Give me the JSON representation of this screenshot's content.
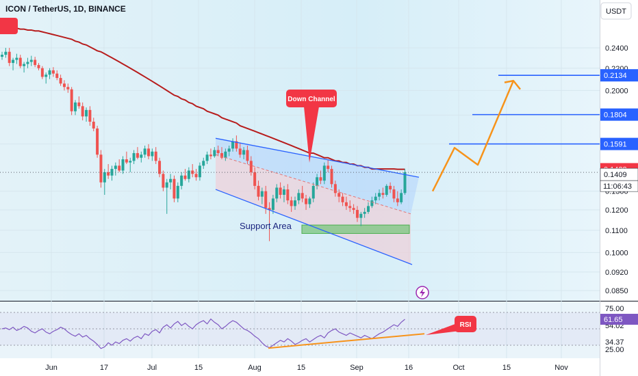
{
  "header": {
    "title": "ICON / TetherUS, 1D, BINANCE",
    "currency": "USDT"
  },
  "colors": {
    "background": "#e3f2f8",
    "bull": "#26a69a",
    "bear": "#ef5350",
    "ma": "#b71c1c",
    "channel": "#2962ff",
    "projection": "#f7931a",
    "support": "#4caf50",
    "label_bg": "#f23645",
    "rsi": "#7e57c2"
  },
  "chart_data": [
    {
      "type": "candlestick",
      "title": "ICON / TetherUS, 1D, BINANCE",
      "x_ticks": [
        "Jun",
        "17",
        "Jul",
        "15",
        "Aug",
        "15",
        "Sep",
        "16",
        "Oct",
        "15",
        "Nov"
      ],
      "y_ticks": [
        "0.2400",
        "0.2200",
        "0.2000",
        "0.1800",
        "0.1591",
        "0.1300",
        "0.1200",
        "0.1100",
        "0.1000",
        "0.0920",
        "0.0850"
      ],
      "ylim": [
        0.082,
        0.27
      ],
      "y_scale": "log",
      "candles": [
        [
          0.231,
          0.236,
          0.228,
          0.233
        ],
        [
          0.233,
          0.24,
          0.23,
          0.236
        ],
        [
          0.236,
          0.24,
          0.222,
          0.225
        ],
        [
          0.225,
          0.23,
          0.218,
          0.228
        ],
        [
          0.228,
          0.234,
          0.224,
          0.23
        ],
        [
          0.23,
          0.233,
          0.22,
          0.222
        ],
        [
          0.222,
          0.226,
          0.216,
          0.224
        ],
        [
          0.224,
          0.23,
          0.22,
          0.226
        ],
        [
          0.226,
          0.232,
          0.222,
          0.228
        ],
        [
          0.228,
          0.231,
          0.221,
          0.223
        ],
        [
          0.223,
          0.225,
          0.218,
          0.22
        ],
        [
          0.22,
          0.222,
          0.21,
          0.212
        ],
        [
          0.212,
          0.216,
          0.206,
          0.214
        ],
        [
          0.214,
          0.22,
          0.21,
          0.218
        ],
        [
          0.218,
          0.221,
          0.212,
          0.215
        ],
        [
          0.215,
          0.218,
          0.209,
          0.211
        ],
        [
          0.211,
          0.214,
          0.204,
          0.206
        ],
        [
          0.206,
          0.209,
          0.2,
          0.203
        ],
        [
          0.203,
          0.206,
          0.198,
          0.201
        ],
        [
          0.201,
          0.203,
          0.18,
          0.183
        ],
        [
          0.183,
          0.192,
          0.18,
          0.19
        ],
        [
          0.19,
          0.195,
          0.185,
          0.187
        ],
        [
          0.187,
          0.19,
          0.176,
          0.179
        ],
        [
          0.179,
          0.186,
          0.175,
          0.184
        ],
        [
          0.184,
          0.187,
          0.172,
          0.175
        ],
        [
          0.175,
          0.178,
          0.168,
          0.17
        ],
        [
          0.17,
          0.172,
          0.15,
          0.152
        ],
        [
          0.152,
          0.155,
          0.132,
          0.135
        ],
        [
          0.135,
          0.143,
          0.128,
          0.141
        ],
        [
          0.141,
          0.146,
          0.137,
          0.139
        ],
        [
          0.139,
          0.145,
          0.136,
          0.143
        ],
        [
          0.143,
          0.147,
          0.139,
          0.145
        ],
        [
          0.145,
          0.149,
          0.141,
          0.142
        ],
        [
          0.142,
          0.151,
          0.14,
          0.149
        ],
        [
          0.149,
          0.154,
          0.146,
          0.147
        ],
        [
          0.147,
          0.15,
          0.141,
          0.148
        ],
        [
          0.148,
          0.155,
          0.146,
          0.153
        ],
        [
          0.153,
          0.157,
          0.149,
          0.15
        ],
        [
          0.15,
          0.154,
          0.147,
          0.152
        ],
        [
          0.152,
          0.158,
          0.15,
          0.156
        ],
        [
          0.156,
          0.159,
          0.149,
          0.151
        ],
        [
          0.151,
          0.156,
          0.148,
          0.154
        ],
        [
          0.154,
          0.157,
          0.146,
          0.148
        ],
        [
          0.148,
          0.15,
          0.138,
          0.14
        ],
        [
          0.14,
          0.142,
          0.13,
          0.132
        ],
        [
          0.132,
          0.137,
          0.118,
          0.135
        ],
        [
          0.135,
          0.14,
          0.131,
          0.137
        ],
        [
          0.137,
          0.139,
          0.124,
          0.126
        ],
        [
          0.126,
          0.135,
          0.124,
          0.133
        ],
        [
          0.133,
          0.141,
          0.131,
          0.139
        ],
        [
          0.139,
          0.143,
          0.136,
          0.137
        ],
        [
          0.137,
          0.144,
          0.135,
          0.142
        ],
        [
          0.142,
          0.146,
          0.138,
          0.14
        ],
        [
          0.14,
          0.143,
          0.136,
          0.138
        ],
        [
          0.138,
          0.147,
          0.136,
          0.145
        ],
        [
          0.145,
          0.15,
          0.143,
          0.148
        ],
        [
          0.148,
          0.154,
          0.146,
          0.152
        ],
        [
          0.152,
          0.156,
          0.149,
          0.151
        ],
        [
          0.151,
          0.157,
          0.15,
          0.155
        ],
        [
          0.155,
          0.158,
          0.151,
          0.153
        ],
        [
          0.153,
          0.157,
          0.149,
          0.15
        ],
        [
          0.15,
          0.156,
          0.148,
          0.154
        ],
        [
          0.154,
          0.158,
          0.151,
          0.156
        ],
        [
          0.156,
          0.163,
          0.154,
          0.161
        ],
        [
          0.161,
          0.165,
          0.154,
          0.156
        ],
        [
          0.156,
          0.16,
          0.15,
          0.152
        ],
        [
          0.152,
          0.157,
          0.149,
          0.155
        ],
        [
          0.155,
          0.158,
          0.146,
          0.148
        ],
        [
          0.148,
          0.151,
          0.139,
          0.141
        ],
        [
          0.141,
          0.144,
          0.131,
          0.133
        ],
        [
          0.133,
          0.136,
          0.125,
          0.127
        ],
        [
          0.127,
          0.132,
          0.123,
          0.13
        ],
        [
          0.13,
          0.133,
          0.118,
          0.121
        ],
        [
          0.121,
          0.124,
          0.105,
          0.12
        ],
        [
          0.12,
          0.128,
          0.118,
          0.126
        ],
        [
          0.126,
          0.134,
          0.124,
          0.132
        ],
        [
          0.132,
          0.135,
          0.126,
          0.128
        ],
        [
          0.128,
          0.133,
          0.124,
          0.131
        ],
        [
          0.131,
          0.134,
          0.123,
          0.125
        ],
        [
          0.125,
          0.127,
          0.119,
          0.122
        ],
        [
          0.122,
          0.127,
          0.12,
          0.125
        ],
        [
          0.125,
          0.131,
          0.123,
          0.129
        ],
        [
          0.129,
          0.133,
          0.124,
          0.126
        ],
        [
          0.126,
          0.128,
          0.12,
          0.123
        ],
        [
          0.123,
          0.127,
          0.121,
          0.126
        ],
        [
          0.126,
          0.135,
          0.124,
          0.133
        ],
        [
          0.133,
          0.14,
          0.131,
          0.138
        ],
        [
          0.138,
          0.142,
          0.134,
          0.136
        ],
        [
          0.136,
          0.147,
          0.134,
          0.145
        ],
        [
          0.145,
          0.149,
          0.141,
          0.143
        ],
        [
          0.143,
          0.145,
          0.132,
          0.134
        ],
        [
          0.134,
          0.136,
          0.127,
          0.129
        ],
        [
          0.129,
          0.131,
          0.124,
          0.127
        ],
        [
          0.127,
          0.129,
          0.122,
          0.124
        ],
        [
          0.124,
          0.127,
          0.12,
          0.122
        ],
        [
          0.122,
          0.125,
          0.119,
          0.121
        ],
        [
          0.121,
          0.123,
          0.118,
          0.12
        ],
        [
          0.12,
          0.122,
          0.114,
          0.116
        ],
        [
          0.116,
          0.119,
          0.112,
          0.118
        ],
        [
          0.118,
          0.121,
          0.116,
          0.119
        ],
        [
          0.119,
          0.124,
          0.118,
          0.122
        ],
        [
          0.122,
          0.127,
          0.121,
          0.125
        ],
        [
          0.125,
          0.129,
          0.123,
          0.127
        ],
        [
          0.127,
          0.131,
          0.125,
          0.129
        ],
        [
          0.129,
          0.132,
          0.126,
          0.128
        ],
        [
          0.128,
          0.134,
          0.127,
          0.133
        ],
        [
          0.133,
          0.135,
          0.129,
          0.131
        ],
        [
          0.131,
          0.133,
          0.124,
          0.126
        ],
        [
          0.126,
          0.13,
          0.122,
          0.124
        ],
        [
          0.124,
          0.131,
          0.123,
          0.129
        ],
        [
          0.129,
          0.143,
          0.128,
          0.141
        ]
      ],
      "moving_average": [
        0.262,
        0.262,
        0.261,
        0.261,
        0.261,
        0.26,
        0.26,
        0.259,
        0.259,
        0.258,
        0.258,
        0.257,
        0.256,
        0.255,
        0.254,
        0.253,
        0.252,
        0.251,
        0.25,
        0.249,
        0.247,
        0.246,
        0.244,
        0.243,
        0.241,
        0.239,
        0.237,
        0.236,
        0.234,
        0.232,
        0.23,
        0.228,
        0.226,
        0.224,
        0.222,
        0.22,
        0.218,
        0.216,
        0.214,
        0.212,
        0.21,
        0.208,
        0.206,
        0.204,
        0.202,
        0.2,
        0.198,
        0.196,
        0.195,
        0.193,
        0.192,
        0.19,
        0.189,
        0.187,
        0.186,
        0.185,
        0.183,
        0.182,
        0.181,
        0.18,
        0.178,
        0.177,
        0.176,
        0.175,
        0.174,
        0.172,
        0.171,
        0.17,
        0.169,
        0.168,
        0.167,
        0.166,
        0.165,
        0.164,
        0.163,
        0.162,
        0.161,
        0.16,
        0.159,
        0.158,
        0.157,
        0.156,
        0.155,
        0.154,
        0.153,
        0.153,
        0.152,
        0.151,
        0.15,
        0.15,
        0.149,
        0.148,
        0.148,
        0.147,
        0.147,
        0.146,
        0.146,
        0.145,
        0.145,
        0.144,
        0.144,
        0.143,
        0.143,
        0.143,
        0.143,
        0.143,
        0.143,
        0.143,
        0.1428,
        0.1428,
        0.1428
      ],
      "channel_upper": [
        [
          0.162,
          0.141
        ],
        [
          0.162,
          0.14
        ]
      ],
      "horizontal_levels": [
        0.2134,
        0.1804,
        0.1591
      ],
      "price_labels": [
        {
          "value": "0.2134",
          "kind": "level"
        },
        {
          "value": "0.1804",
          "kind": "level"
        },
        {
          "value": "0.1591",
          "kind": "level"
        },
        {
          "value": "0.1428",
          "kind": "ma"
        },
        {
          "value": "0.1409",
          "kind": "last"
        }
      ],
      "countdown": "11:06:43",
      "annotations": [
        "Down Channel",
        "Support Area"
      ]
    },
    {
      "type": "line",
      "title": "RSI",
      "y_ticks": [
        "75.00",
        "54.02",
        "34.37",
        "25.00"
      ],
      "current_value": "61.65",
      "levels": [
        70,
        50,
        30
      ],
      "ylim": [
        20,
        80
      ],
      "values": [
        50,
        51,
        49,
        52,
        48,
        50,
        53,
        51,
        47,
        45,
        48,
        50,
        46,
        44,
        47,
        49,
        52,
        50,
        46,
        43,
        41,
        44,
        40,
        42,
        38,
        35,
        31,
        26,
        28,
        33,
        30,
        34,
        32,
        36,
        38,
        35,
        39,
        41,
        38,
        44,
        42,
        47,
        49,
        45,
        52,
        55,
        51,
        56,
        59,
        54,
        57,
        53,
        50,
        55,
        58,
        60,
        56,
        62,
        58,
        55,
        50,
        53,
        57,
        60,
        58,
        54,
        50,
        48,
        45,
        41,
        38,
        33,
        29,
        27,
        30,
        33,
        36,
        34,
        38,
        35,
        31,
        33,
        36,
        38,
        34,
        37,
        40,
        42,
        39,
        45,
        48,
        50,
        46,
        44,
        42,
        45,
        43,
        41,
        39,
        42,
        40,
        38,
        41,
        44,
        46,
        49,
        52,
        55,
        53,
        58,
        61.65
      ]
    }
  ]
}
